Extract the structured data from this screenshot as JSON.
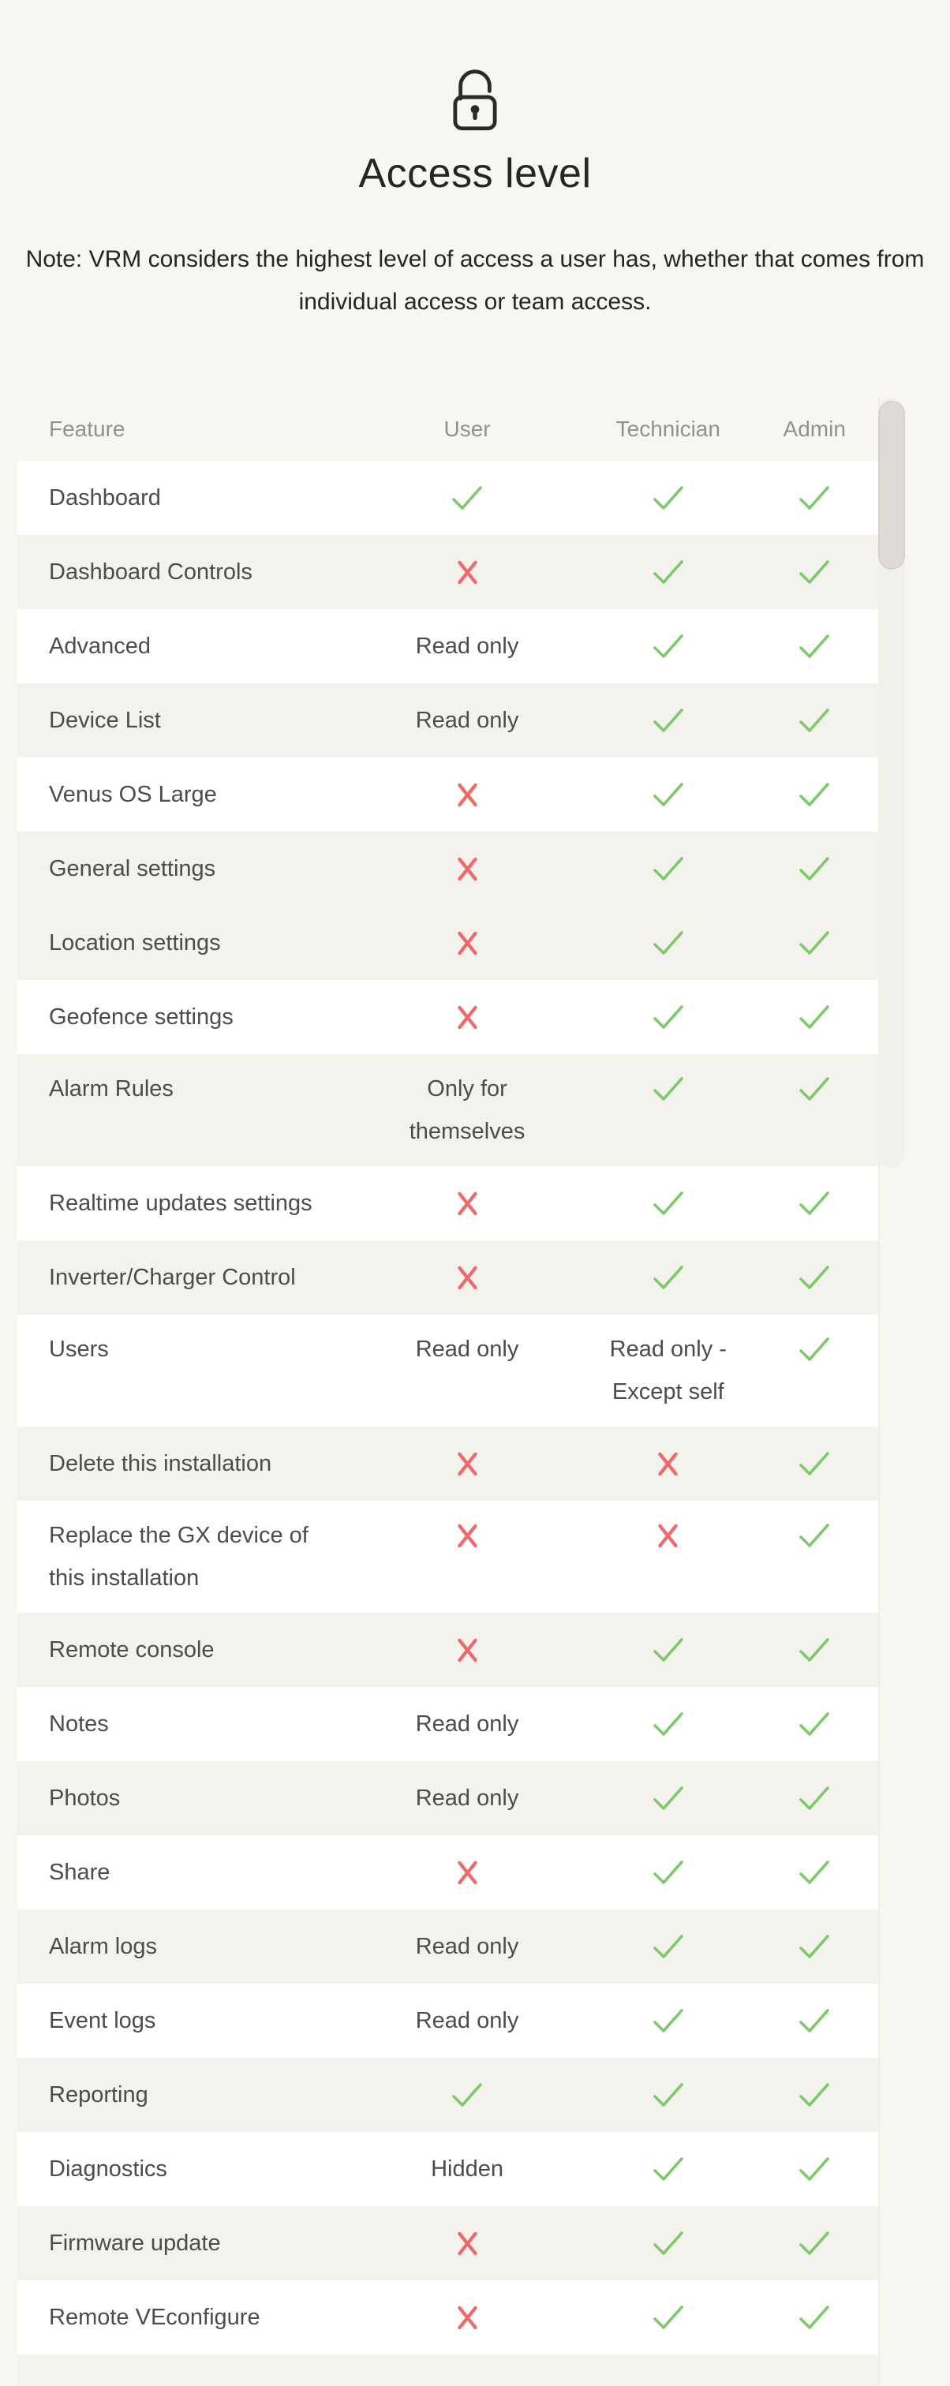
{
  "header": {
    "icon": "unlocked-padlock",
    "title": "Access level",
    "note": "Note: VRM considers the highest level of access a user has, whether that comes from individual access or team access."
  },
  "table": {
    "columns": [
      "Feature",
      "User",
      "Technician",
      "Admin"
    ],
    "rows": [
      {
        "feature": "Dashboard",
        "user": "check",
        "technician": "check",
        "admin": "check",
        "shaded": false
      },
      {
        "feature": "Dashboard Controls",
        "user": "cross",
        "technician": "check",
        "admin": "check",
        "shaded": true
      },
      {
        "feature": "Advanced",
        "user": "Read only",
        "technician": "check",
        "admin": "check",
        "shaded": false
      },
      {
        "feature": "Device List",
        "user": "Read only",
        "technician": "check",
        "admin": "check",
        "shaded": true
      },
      {
        "feature": "Venus OS Large",
        "user": "cross",
        "technician": "check",
        "admin": "check",
        "shaded": false
      },
      {
        "feature": "General settings",
        "user": "cross",
        "technician": "check",
        "admin": "check",
        "shaded": true
      },
      {
        "feature": "Location settings",
        "user": "cross",
        "technician": "check",
        "admin": "check",
        "shaded": true
      },
      {
        "feature": "Geofence settings",
        "user": "cross",
        "technician": "check",
        "admin": "check",
        "shaded": false
      },
      {
        "feature": "Alarm Rules",
        "user": "Only for themselves",
        "technician": "check",
        "admin": "check",
        "shaded": true,
        "multi": true
      },
      {
        "feature": "Realtime updates settings",
        "user": "cross",
        "technician": "check",
        "admin": "check",
        "shaded": false
      },
      {
        "feature": "Inverter/Charger Control",
        "user": "cross",
        "technician": "check",
        "admin": "check",
        "shaded": true
      },
      {
        "feature": "Users",
        "user": "Read only",
        "technician": "Read only - Except self",
        "admin": "check",
        "shaded": false,
        "multi": true
      },
      {
        "feature": "Delete this installation",
        "user": "cross",
        "technician": "cross",
        "admin": "check",
        "shaded": true
      },
      {
        "feature": "Replace the GX device of this installation",
        "user": "cross",
        "technician": "cross",
        "admin": "check",
        "shaded": false,
        "multi": true
      },
      {
        "feature": "Remote console",
        "user": "cross",
        "technician": "check",
        "admin": "check",
        "shaded": true
      },
      {
        "feature": "Notes",
        "user": "Read only",
        "technician": "check",
        "admin": "check",
        "shaded": false
      },
      {
        "feature": "Photos",
        "user": "Read only",
        "technician": "check",
        "admin": "check",
        "shaded": true
      },
      {
        "feature": "Share",
        "user": "cross",
        "technician": "check",
        "admin": "check",
        "shaded": false
      },
      {
        "feature": "Alarm logs",
        "user": "Read only",
        "technician": "check",
        "admin": "check",
        "shaded": true
      },
      {
        "feature": "Event logs",
        "user": "Read only",
        "technician": "check",
        "admin": "check",
        "shaded": false
      },
      {
        "feature": "Reporting",
        "user": "check",
        "technician": "check",
        "admin": "check",
        "shaded": true
      },
      {
        "feature": "Diagnostics",
        "user": "Hidden",
        "technician": "check",
        "admin": "check",
        "shaded": false
      },
      {
        "feature": "Firmware update",
        "user": "cross",
        "technician": "check",
        "admin": "check",
        "shaded": true
      },
      {
        "feature": "Remote VEconfigure",
        "user": "cross",
        "technician": "check",
        "admin": "check",
        "shaded": false
      }
    ]
  },
  "colors": {
    "page-bg": "#f8f6f1",
    "row-light": "#ffffff",
    "row-shaded": "#f4f2ec",
    "title": "#26251f",
    "text": "#4e4c48",
    "muted": "#93918d",
    "check": "#7fc96d",
    "cross": "#ef6b6b",
    "scroll-thumb": "#dedbd6",
    "scroll-track": "#f2f0ea",
    "icon": "#2b2a27"
  }
}
